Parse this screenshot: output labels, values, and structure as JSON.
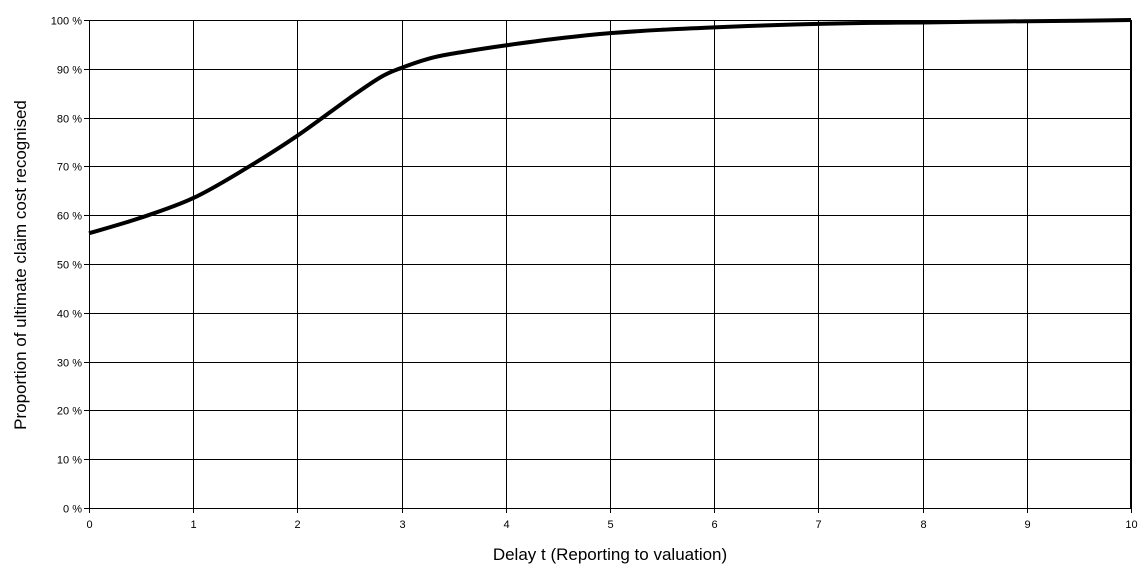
{
  "chart_data": {
    "type": "line",
    "title": "",
    "xlabel": "Delay t (Reporting to valuation)",
    "ylabel": "Proportion of ultimate claim cost recognised",
    "xlim": [
      0,
      10
    ],
    "ylim": [
      0,
      100
    ],
    "x_ticks": [
      0,
      1,
      2,
      3,
      4,
      5,
      6,
      7,
      8,
      9,
      10
    ],
    "x_tick_labels": [
      "0",
      "1",
      "2",
      "3",
      "4",
      "5",
      "6",
      "7",
      "8",
      "9",
      "10"
    ],
    "y_ticks": [
      0,
      10,
      20,
      30,
      40,
      50,
      60,
      70,
      80,
      90,
      100
    ],
    "y_tick_labels": [
      "0 %",
      "10 %",
      "20 %",
      "30 %",
      "40 %",
      "50 %",
      "60 %",
      "70 %",
      "80 %",
      "90 %",
      "100 %"
    ],
    "grid": true,
    "legend": "none",
    "series": [
      {
        "color": "#000000",
        "x": [
          0,
          0.5,
          1,
          1.5,
          2,
          2.5,
          2.8,
          3,
          3.3,
          3.6,
          4,
          4.5,
          5,
          5.5,
          6,
          6.5,
          7,
          7.5,
          8,
          8.5,
          9,
          9.5,
          10
        ],
        "y": [
          56.3,
          59.5,
          63.5,
          69.5,
          76.3,
          84,
          88.3,
          90.2,
          92.3,
          93.5,
          94.8,
          96.2,
          97.3,
          98,
          98.5,
          98.9,
          99.2,
          99.4,
          99.5,
          99.65,
          99.75,
          99.85,
          100
        ]
      }
    ]
  }
}
